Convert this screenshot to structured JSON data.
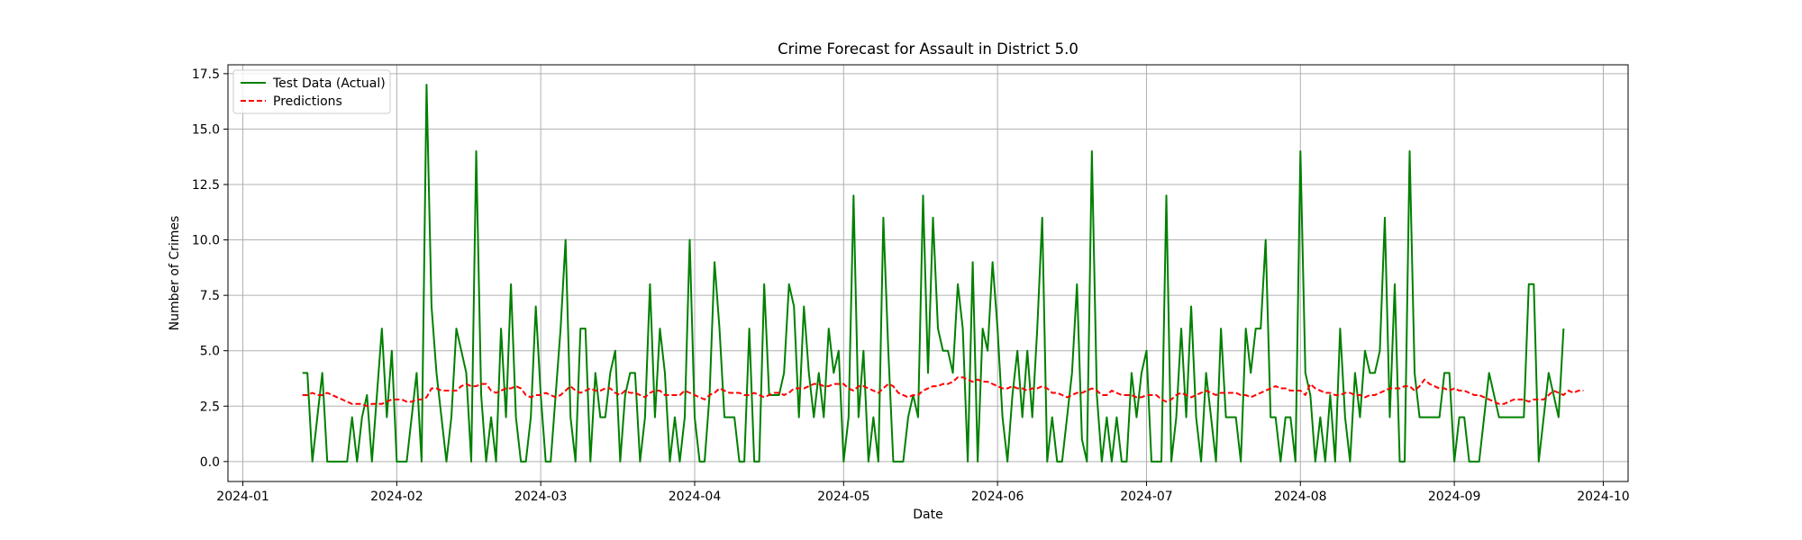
{
  "chart_data": {
    "type": "line",
    "title": "Crime Forecast for Assault in District 5.0",
    "xlabel": "Date",
    "ylabel": "Number of Crimes",
    "xlim": [
      "2023-12-29",
      "2024-10-06"
    ],
    "ylim": [
      -0.9,
      17.9
    ],
    "x_ticks": [
      "2024-01-01",
      "2024-02-01",
      "2024-03-01",
      "2024-04-01",
      "2024-05-01",
      "2024-06-01",
      "2024-07-01",
      "2024-08-01",
      "2024-09-01",
      "2024-10-01"
    ],
    "x_tick_labels": [
      "2024-01",
      "2024-02",
      "2024-03",
      "2024-04",
      "2024-05",
      "2024-06",
      "2024-07",
      "2024-08",
      "2024-09",
      "2024-10"
    ],
    "y_ticks": [
      0,
      2.5,
      5,
      7.5,
      10,
      12.5,
      15,
      17.5
    ],
    "y_tick_labels": [
      "0.0",
      "2.5",
      "5.0",
      "7.5",
      "10.0",
      "12.5",
      "15.0",
      "17.5"
    ],
    "grid": true,
    "legend_position": "top-left",
    "x_start": "2024-01-13",
    "series": [
      {
        "name": "Test Data (Actual)",
        "color": "#008000",
        "style": "solid",
        "values": [
          4,
          4,
          0,
          2,
          4,
          0,
          0,
          0,
          0,
          0,
          2,
          0,
          2,
          3,
          0,
          3,
          6,
          2,
          5,
          0,
          0,
          0,
          2,
          4,
          0,
          17,
          7,
          4,
          2,
          0,
          2,
          6,
          5,
          4,
          0,
          14,
          3,
          0,
          2,
          0,
          6,
          2,
          8,
          2,
          0,
          0,
          2,
          7,
          3,
          0,
          0,
          3,
          6,
          10,
          2,
          0,
          6,
          6,
          0,
          4,
          2,
          2,
          4,
          5,
          0,
          3,
          4,
          4,
          0,
          2,
          8,
          2,
          6,
          4,
          0,
          2,
          0,
          2,
          10,
          2,
          0,
          0,
          3,
          9,
          6,
          2,
          2,
          2,
          0,
          0,
          6,
          0,
          0,
          8,
          3,
          3,
          3,
          4,
          8,
          7,
          2,
          7,
          4,
          2,
          4,
          2,
          6,
          4,
          5,
          0,
          2,
          12,
          2,
          5,
          0,
          2,
          0,
          11,
          5,
          0,
          0,
          0,
          2,
          3,
          2,
          12,
          4,
          11,
          6,
          5,
          5,
          4,
          8,
          6,
          0,
          9,
          0,
          6,
          5,
          9,
          6,
          2,
          0,
          3,
          5,
          2,
          5,
          2,
          6,
          11,
          0,
          2,
          0,
          0,
          2,
          4,
          8,
          1,
          0,
          14,
          3,
          0,
          2,
          0,
          2,
          0,
          0,
          4,
          2,
          4,
          5,
          0,
          0,
          0,
          12,
          0,
          2,
          6,
          2,
          7,
          2,
          0,
          4,
          2,
          0,
          6,
          2,
          2,
          2,
          0,
          6,
          4,
          6,
          6,
          10,
          2,
          2,
          0,
          2,
          2,
          0,
          14,
          4,
          3,
          0,
          2,
          0,
          3,
          0,
          6,
          2,
          0,
          4,
          2,
          5,
          4,
          4,
          5,
          11,
          2,
          8,
          0,
          0,
          14,
          4,
          2,
          2,
          2,
          2,
          2,
          4,
          4,
          0,
          2,
          2,
          0,
          0,
          0,
          2,
          4,
          3,
          2,
          2,
          2,
          2,
          2,
          2,
          8,
          8,
          0,
          2,
          4,
          3,
          2,
          6
        ]
      },
      {
        "name": "Predictions",
        "color": "#ff0000",
        "style": "dashed",
        "values": [
          3.0,
          3.0,
          3.1,
          3.0,
          3.0,
          3.1,
          3.0,
          2.9,
          2.8,
          2.7,
          2.6,
          2.6,
          2.6,
          2.5,
          2.6,
          2.6,
          2.6,
          2.7,
          2.8,
          2.8,
          2.8,
          2.7,
          2.7,
          2.8,
          2.8,
          2.9,
          3.3,
          3.3,
          3.2,
          3.2,
          3.2,
          3.2,
          3.4,
          3.5,
          3.4,
          3.4,
          3.5,
          3.5,
          3.2,
          3.1,
          3.2,
          3.3,
          3.3,
          3.4,
          3.3,
          3.0,
          2.9,
          3.0,
          3.0,
          3.1,
          3.0,
          2.9,
          3.0,
          3.2,
          3.4,
          3.2,
          3.1,
          3.2,
          3.3,
          3.2,
          3.2,
          3.3,
          3.3,
          3.1,
          3.0,
          3.2,
          3.1,
          3.1,
          3.0,
          2.9,
          3.1,
          3.2,
          3.2,
          3.0,
          3.0,
          3.0,
          3.0,
          3.2,
          3.1,
          3.0,
          2.9,
          2.8,
          3.0,
          3.1,
          3.3,
          3.2,
          3.1,
          3.1,
          3.1,
          3.0,
          3.0,
          3.1,
          3.0,
          2.9,
          3.0,
          3.1,
          3.1,
          3.0,
          3.1,
          3.3,
          3.3,
          3.3,
          3.4,
          3.5,
          3.5,
          3.4,
          3.4,
          3.5,
          3.5,
          3.5,
          3.3,
          3.2,
          3.4,
          3.4,
          3.3,
          3.2,
          3.1,
          3.3,
          3.5,
          3.4,
          3.1,
          3.0,
          2.9,
          3.0,
          3.0,
          3.2,
          3.3,
          3.4,
          3.4,
          3.5,
          3.5,
          3.6,
          3.8,
          3.8,
          3.7,
          3.6,
          3.7,
          3.6,
          3.6,
          3.5,
          3.4,
          3.3,
          3.3,
          3.4,
          3.3,
          3.3,
          3.2,
          3.3,
          3.3,
          3.4,
          3.3,
          3.1,
          3.1,
          3.0,
          2.9,
          3.0,
          3.1,
          3.1,
          3.2,
          3.3,
          3.2,
          3.0,
          3.0,
          3.2,
          3.1,
          3.0,
          3.0,
          3.0,
          2.9,
          2.9,
          3.0,
          3.0,
          3.0,
          2.8,
          2.7,
          2.8,
          3.0,
          3.1,
          3.0,
          2.9,
          3.0,
          3.1,
          3.2,
          3.1,
          3.0,
          3.1,
          3.1,
          3.1,
          3.1,
          3.0,
          3.0,
          2.9,
          3.0,
          3.1,
          3.2,
          3.3,
          3.4,
          3.3,
          3.3,
          3.2,
          3.2,
          3.2,
          3.0,
          3.5,
          3.3,
          3.2,
          3.1,
          3.1,
          3.0,
          3.0,
          3.1,
          3.1,
          3.0,
          3.0,
          2.9,
          3.0,
          3.0,
          3.1,
          3.2,
          3.3,
          3.3,
          3.3,
          3.4,
          3.4,
          3.2,
          3.4,
          3.7,
          3.5,
          3.4,
          3.3,
          3.3,
          3.2,
          3.3,
          3.2,
          3.2,
          3.1,
          3.0,
          3.0,
          2.9,
          2.8,
          2.7,
          2.6,
          2.6,
          2.7,
          2.8,
          2.8,
          2.8,
          2.7,
          2.8,
          2.8,
          2.8,
          3.0,
          3.2,
          3.1,
          3.0,
          3.2,
          3.1,
          3.2,
          3.2
        ]
      }
    ]
  }
}
